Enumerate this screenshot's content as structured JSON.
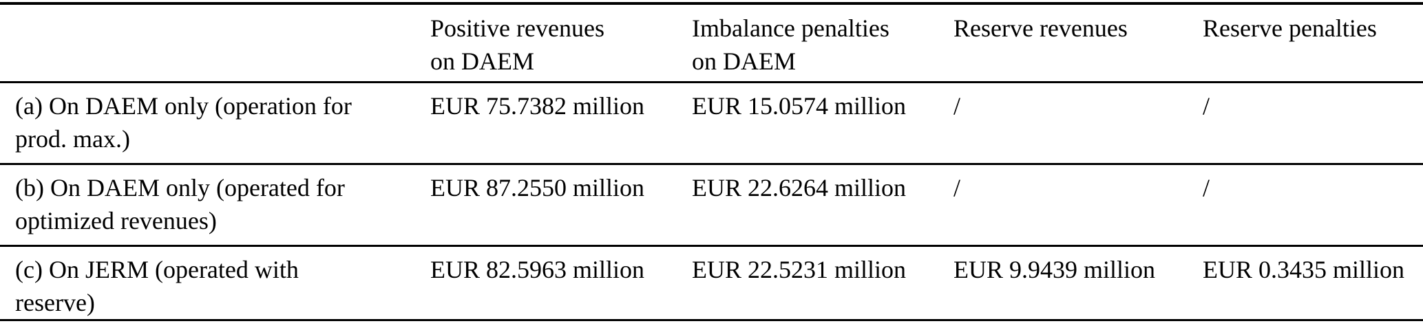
{
  "page": {
    "background_color": "#ffffff",
    "rule_color": "#000000",
    "text_color": "#000000"
  },
  "table": {
    "header": {
      "row_label_header": "",
      "positive_revenues_on_daem": "Positive revenues\non DAEM",
      "imbalance_penalties_on_daem": "Imbalance penalties\non DAEM",
      "reserve_revenues": "Reserve revenues",
      "reserve_penalties": "Reserve penalties"
    },
    "rows": [
      {
        "label": "(a) On DAEM only (operation for\nprod. max.)",
        "positive_revenues_on_daem": "EUR 75.7382 million",
        "imbalance_penalties_on_daem": "EUR 15.0574 million",
        "reserve_revenues": "/",
        "reserve_penalties": "/"
      },
      {
        "label": "(b) On DAEM only (operated for\noptimized revenues)",
        "positive_revenues_on_daem": "EUR 87.2550 million",
        "imbalance_penalties_on_daem": "EUR 22.6264 million",
        "reserve_revenues": "/",
        "reserve_penalties": "/"
      },
      {
        "label": "(c) On JERM (operated with\nreserve)",
        "positive_revenues_on_daem": "EUR 82.5963 million",
        "imbalance_penalties_on_daem": "EUR 22.5231 million",
        "reserve_revenues": "EUR 9.9439 million",
        "reserve_penalties": "EUR 0.3435 million"
      }
    ]
  }
}
